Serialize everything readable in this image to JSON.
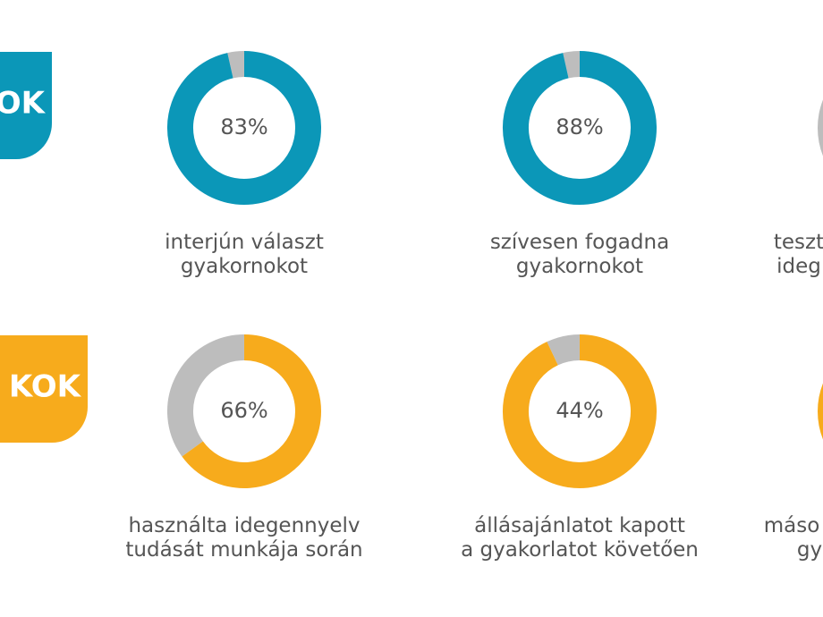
{
  "rows": [
    {
      "badge": "OK",
      "color": "#0b97b8",
      "items": [
        {
          "value": 83,
          "value_label": "83%",
          "ring": 96.5,
          "label": [
            "interjún választ",
            "gyakornokot"
          ]
        },
        {
          "value": 88,
          "value_label": "88%",
          "ring": 96.5,
          "label": [
            "szívesen fogadna",
            "gyakornokot"
          ]
        }
      ],
      "partial_label": [
        "teszt",
        "ideg"
      ]
    },
    {
      "badge": "KOK",
      "color": "#f7ab1c",
      "items": [
        {
          "value": 66,
          "value_label": "66%",
          "ring": 65,
          "label": [
            "használta idegennyelv",
            "tudását munkája során"
          ]
        },
        {
          "value": 44,
          "value_label": "44%",
          "ring": 93,
          "label": [
            "állásajánlatot kapott",
            "a gyakorlatot követően"
          ]
        }
      ],
      "partial_label": [
        "máso",
        "gy"
      ]
    }
  ]
}
